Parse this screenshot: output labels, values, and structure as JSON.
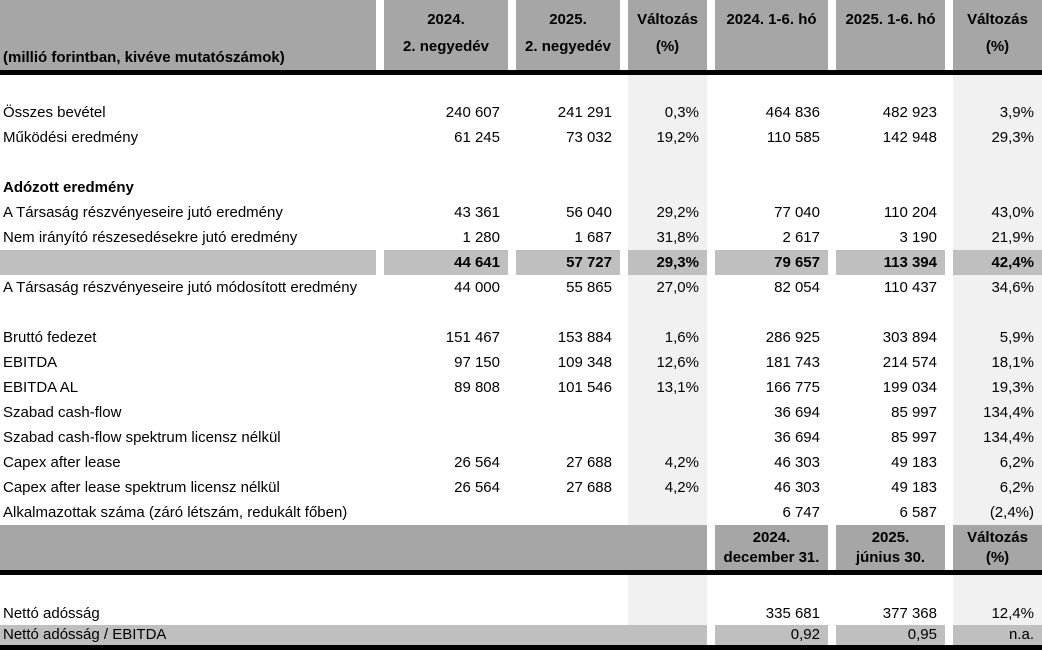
{
  "colors": {
    "header_gray": "#a6a6a6",
    "total_gray": "#bfbfbf",
    "band_gray": "#f1f1f1",
    "line_black": "#000000"
  },
  "table": {
    "unit_note": "(millió forintban, kivéve mutatószámok)",
    "header_quarter": {
      "columns": [
        {
          "line1": "2024.",
          "line2": "2. negyedév"
        },
        {
          "line1": "2025.",
          "line2": "2. negyedév"
        },
        {
          "line1": "Változás",
          "line2": "(%)"
        },
        {
          "line1": "2024. 1-6. hó",
          "line2": ""
        },
        {
          "line1": "2025. 1-6. hó",
          "line2": ""
        },
        {
          "line1": "Változás",
          "line2": "(%)"
        }
      ]
    },
    "rows": [
      {
        "style": "blank",
        "label": "",
        "values": [
          "",
          "",
          "",
          "",
          "",
          ""
        ]
      },
      {
        "style": "normal",
        "label": "Összes bevétel",
        "values": [
          "240 607",
          "241 291",
          "0,3%",
          "464 836",
          "482 923",
          "3,9%"
        ]
      },
      {
        "style": "normal",
        "label": "Működési eredmény",
        "values": [
          "61 245",
          "73 032",
          "19,2%",
          "110 585",
          "142 948",
          "29,3%"
        ]
      },
      {
        "style": "blank",
        "label": "",
        "values": [
          "",
          "",
          "",
          "",
          "",
          ""
        ]
      },
      {
        "style": "section",
        "label": "Adózott eredmény",
        "values": [
          "",
          "",
          "",
          "",
          "",
          ""
        ]
      },
      {
        "style": "normal",
        "label": "A Társaság részvényeseire jutó eredmény",
        "values": [
          "43 361",
          "56 040",
          "29,2%",
          "77 040",
          "110 204",
          "43,0%"
        ]
      },
      {
        "style": "normal",
        "label": "Nem irányító részesedésekre jutó eredmény",
        "values": [
          "1 280",
          "1 687",
          "31,8%",
          "2 617",
          "3 190",
          "21,9%"
        ]
      },
      {
        "style": "total",
        "label": "",
        "values": [
          "44 641",
          "57 727",
          "29,3%",
          "79 657",
          "113 394",
          "42,4%"
        ]
      },
      {
        "style": "normal",
        "label": "A Társaság részvényeseire jutó módosított eredmény",
        "values": [
          "44 000",
          "55 865",
          "27,0%",
          "82 054",
          "110 437",
          "34,6%"
        ]
      },
      {
        "style": "blank",
        "label": "",
        "values": [
          "",
          "",
          "",
          "",
          "",
          ""
        ]
      },
      {
        "style": "normal",
        "label": "Bruttó fedezet",
        "values": [
          "151 467",
          "153 884",
          "1,6%",
          "286 925",
          "303 894",
          "5,9%"
        ]
      },
      {
        "style": "normal",
        "label": "EBITDA",
        "values": [
          "97 150",
          "109 348",
          "12,6%",
          "181 743",
          "214 574",
          "18,1%"
        ]
      },
      {
        "style": "normal",
        "label": "EBITDA AL",
        "values": [
          "89 808",
          "101 546",
          "13,1%",
          "166 775",
          "199 034",
          "19,3%"
        ]
      },
      {
        "style": "normal",
        "label": "Szabad cash-flow",
        "values": [
          "",
          "",
          "",
          "36 694",
          "85 997",
          "134,4%"
        ]
      },
      {
        "style": "normal",
        "label": "Szabad cash-flow spektrum licensz nélkül",
        "values": [
          "",
          "",
          "",
          "36 694",
          "85 997",
          "134,4%"
        ]
      },
      {
        "style": "normal",
        "label": "Capex after lease",
        "values": [
          "26 564",
          "27 688",
          "4,2%",
          "46 303",
          "49 183",
          "6,2%"
        ]
      },
      {
        "style": "normal",
        "label": "Capex after lease spektrum licensz nélkül",
        "values": [
          "26 564",
          "27 688",
          "4,2%",
          "46 303",
          "49 183",
          "6,2%"
        ]
      },
      {
        "style": "normal",
        "label": "Alkalmazottak száma (záró létszám, redukált főben)",
        "values": [
          "",
          "",
          "",
          "6 747",
          "6 587",
          "(2,4%)"
        ]
      }
    ],
    "header_balance": {
      "columns": [
        {
          "line1": "2024.",
          "line2": "december 31."
        },
        {
          "line1": "2025.",
          "line2": "június 30."
        },
        {
          "line1": "Változás",
          "line2": "(%)"
        }
      ]
    },
    "rows_balance": {
      "netto": {
        "label": "Nettó adósság",
        "v4": "335 681",
        "v5": "377 368",
        "v6": "12,4%"
      },
      "ratio": {
        "label": "Nettó adósság / EBITDA",
        "v4": "0,92",
        "v5": "0,95",
        "v6": "n.a."
      }
    }
  }
}
